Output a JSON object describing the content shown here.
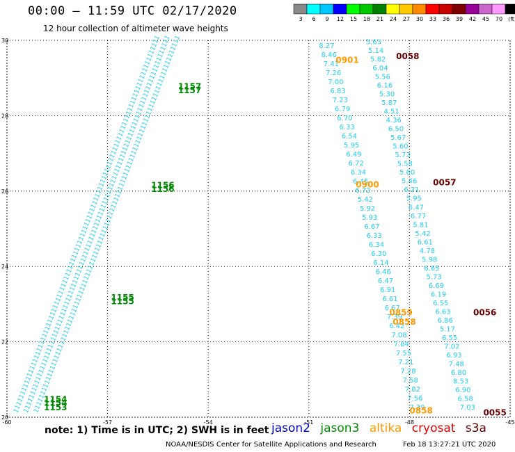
{
  "header": {
    "title": "00:00 – 11:59 UTC 02/17/2020",
    "subtitle": "12 hour collection of altimeter wave heights"
  },
  "colorbar": {
    "labels": [
      "3",
      "6",
      "9",
      "12",
      "15",
      "18",
      "21",
      "24",
      "27",
      "30",
      "33",
      "36",
      "39",
      "42",
      "45",
      "70",
      "(ft)"
    ],
    "colors": [
      "#888888",
      "#00ffff",
      "#00c8ff",
      "#0000ff",
      "#00ff00",
      "#00c800",
      "#008000",
      "#ffff00",
      "#ffc800",
      "#ff8c00",
      "#ff0000",
      "#c80000",
      "#800000",
      "#990099",
      "#cc66cc",
      "#ff99ff",
      "#000000"
    ]
  },
  "footer": {
    "note": "note:  1)  Time is in UTC;  2)  SWH is in feet",
    "legend": [
      {
        "label": "jason2",
        "color": "#0000cc"
      },
      {
        "label": "jason3",
        "color": "#008800"
      },
      {
        "label": "altika",
        "color": "#ff9900"
      },
      {
        "label": "cryosat",
        "color": "#dd0000"
      },
      {
        "label": "s3a",
        "color": "#660000"
      }
    ],
    "credit": "NOAA/NESDIS Center for Satellite Applications and Research",
    "timestamp": "Feb 18 13:27:21 UTC 2020"
  },
  "chart_data": {
    "type": "scatter",
    "xlim": [
      -60,
      -45
    ],
    "ylim": [
      20,
      30
    ],
    "x_ticks": [
      "-60",
      "-57",
      "-54",
      "-51",
      "-48",
      "-45"
    ],
    "y_ticks": [
      "20",
      "22",
      "24",
      "26",
      "28",
      "30"
    ],
    "grid": true,
    "tracks": [
      {
        "satellite": "jason3",
        "x1": -59.1,
        "y1": 20.1,
        "x2": -54.9,
        "y2": 30.0,
        "value_prefix": "1",
        "count": 105,
        "color": "#22ccee"
      },
      {
        "satellite": "jason3",
        "x1": -59.4,
        "y1": 20.1,
        "x2": -55.2,
        "y2": 30.0,
        "value_prefix": "1",
        "count": 105,
        "color": "#22ccee"
      },
      {
        "satellite": "jason3",
        "x1": -59.7,
        "y1": 20.1,
        "x2": -55.5,
        "y2": 30.0,
        "value_prefix": "1",
        "count": 105,
        "color": "#22ccee"
      }
    ],
    "time_labels": [
      {
        "text": "1157",
        "x": -54.9,
        "y": 28.7,
        "color": "#008800"
      },
      {
        "text": "1157",
        "x": -54.9,
        "y": 28.6,
        "color": "#008800"
      },
      {
        "text": "1156",
        "x": -55.7,
        "y": 26.08,
        "color": "#008800"
      },
      {
        "text": "1156",
        "x": -55.7,
        "y": 25.98,
        "color": "#008800"
      },
      {
        "text": "1155",
        "x": -56.9,
        "y": 23.1,
        "color": "#008800"
      },
      {
        "text": "1155",
        "x": -56.9,
        "y": 23.0,
        "color": "#008800"
      },
      {
        "text": "1154",
        "x": -58.9,
        "y": 20.4,
        "color": "#008800"
      },
      {
        "text": "1154",
        "x": -58.9,
        "y": 20.3,
        "color": "#008800"
      },
      {
        "text": "1153",
        "x": -58.9,
        "y": 20.18,
        "color": "#008800"
      },
      {
        "text": "0901",
        "x": -50.2,
        "y": 29.4,
        "color": "#ff9900"
      },
      {
        "text": "0058",
        "x": -48.4,
        "y": 29.5,
        "color": "#660000"
      },
      {
        "text": "0900",
        "x": -49.6,
        "y": 26.1,
        "color": "#ff9900"
      },
      {
        "text": "0057",
        "x": -47.3,
        "y": 26.15,
        "color": "#660000"
      },
      {
        "text": "0859",
        "x": -48.6,
        "y": 22.7,
        "color": "#ff9900"
      },
      {
        "text": "0858",
        "x": -48.5,
        "y": 22.45,
        "color": "#ff9900"
      },
      {
        "text": "0056",
        "x": -46.1,
        "y": 22.7,
        "color": "#660000"
      },
      {
        "text": "0858",
        "x": -48.0,
        "y": 20.1,
        "color": "#ff9900"
      },
      {
        "text": "0055",
        "x": -45.8,
        "y": 20.05,
        "color": "#660000"
      }
    ],
    "swh_series": [
      {
        "name": "track-a",
        "color": "#22ccee",
        "x_top": -50.7,
        "y_top": 29.8,
        "x_bottom": -48.0,
        "y_bottom": 20.2,
        "values": [
          "8.27",
          "8.46",
          "7.41",
          "7.26",
          "7.00",
          "6.83",
          "7.23",
          "6.79",
          "6.70",
          "6.33",
          "6.54",
          "5.95",
          "6.49",
          "6.72",
          "6.34",
          "6.45",
          "6.72",
          "5.42",
          "5.92",
          "5.93",
          "6.67",
          "6.33",
          "6.34",
          "6.30",
          "6.14",
          "6.46",
          "6.47",
          "6.91",
          "6.61",
          "6.67",
          "7.39",
          "6.42",
          "7.08",
          "7.84",
          "7.55",
          "7.21",
          "7.28",
          "7.58",
          "7.82",
          "7.56",
          "7.39"
        ]
      },
      {
        "name": "track-b",
        "color": "#22ccee",
        "x_top": -49.3,
        "y_top": 29.9,
        "x_bottom": -46.5,
        "y_bottom": 20.2,
        "values": [
          "5.63",
          "5.14",
          "5.82",
          "6.04",
          "5.56",
          "6.16",
          "5.30",
          "5.87",
          "4.51",
          "4.36",
          "6.50",
          "5.67",
          "5.60",
          "5.73",
          "5.58",
          "5.60",
          "5.46",
          "6.21",
          "5.95",
          "6.47",
          "6.77",
          "5.81",
          "5.42",
          "6.61",
          "4.78",
          "5.98",
          "6.65",
          "5.73",
          "6.69",
          "6.19",
          "6.55",
          "6.63",
          "6.86",
          "5.17",
          "6.55",
          "7.02",
          "6.93",
          "7.48",
          "6.80",
          "8.53",
          "6.90",
          "6.58",
          "7.03"
        ]
      }
    ]
  }
}
